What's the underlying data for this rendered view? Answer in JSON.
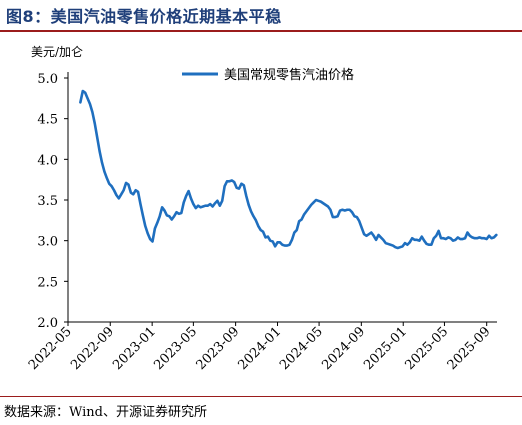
{
  "figure": {
    "title": "图8：美国汽油零售价格近期基本平稳",
    "source": "数据来源：Wind、开源证券研究所"
  },
  "colors": {
    "series": "#1f6fbf",
    "axis": "#000000",
    "title": "#1f3f7a",
    "rule": "#9b1c1c"
  },
  "chart_data": {
    "type": "line",
    "ylabel": "美元/加仑",
    "xlabel": "",
    "ylim": [
      2.0,
      5.0
    ],
    "y_ticks": [
      "5.0",
      "4.5",
      "4.0",
      "3.5",
      "3.0",
      "2.5",
      "2.0"
    ],
    "x_ticks": [
      "2022-05",
      "2022-09",
      "2023-01",
      "2023-05",
      "2023-09",
      "2024-01",
      "2024-05",
      "2024-09",
      "2025-01",
      "2025-05",
      "2025-09"
    ],
    "grid": false,
    "legend_position": "top-right",
    "series": [
      {
        "name": "美国常规零售汽油价格",
        "x": [
          "2022-06-06",
          "2022-06-13",
          "2022-06-20",
          "2022-06-27",
          "2022-07-04",
          "2022-07-11",
          "2022-07-18",
          "2022-07-25",
          "2022-08-01",
          "2022-08-08",
          "2022-08-15",
          "2022-08-22",
          "2022-08-29",
          "2022-09-05",
          "2022-09-12",
          "2022-09-19",
          "2022-09-26",
          "2022-10-03",
          "2022-10-10",
          "2022-10-17",
          "2022-10-24",
          "2022-10-31",
          "2022-11-07",
          "2022-11-14",
          "2022-11-21",
          "2022-11-28",
          "2022-12-05",
          "2022-12-12",
          "2022-12-19",
          "2022-12-26",
          "2023-01-02",
          "2023-01-09",
          "2023-01-16",
          "2023-01-23",
          "2023-01-30",
          "2023-02-06",
          "2023-02-13",
          "2023-02-20",
          "2023-02-27",
          "2023-03-06",
          "2023-03-13",
          "2023-03-20",
          "2023-03-27",
          "2023-04-03",
          "2023-04-10",
          "2023-04-17",
          "2023-04-24",
          "2023-05-01",
          "2023-05-08",
          "2023-05-15",
          "2023-05-22",
          "2023-05-29",
          "2023-06-05",
          "2023-06-12",
          "2023-06-19",
          "2023-06-26",
          "2023-07-03",
          "2023-07-10",
          "2023-07-17",
          "2023-07-24",
          "2023-07-31",
          "2023-08-07",
          "2023-08-14",
          "2023-08-21",
          "2023-08-28",
          "2023-09-04",
          "2023-09-11",
          "2023-09-18",
          "2023-09-25",
          "2023-10-02",
          "2023-10-09",
          "2023-10-16",
          "2023-10-23",
          "2023-10-30",
          "2023-11-06",
          "2023-11-13",
          "2023-11-20",
          "2023-11-27",
          "2023-12-04",
          "2023-12-11",
          "2023-12-18",
          "2023-12-25",
          "2024-01-01",
          "2024-01-08",
          "2024-01-15",
          "2024-01-22",
          "2024-01-29",
          "2024-02-05",
          "2024-02-12",
          "2024-02-19",
          "2024-02-26",
          "2024-03-04",
          "2024-03-11",
          "2024-03-18",
          "2024-03-25",
          "2024-04-01",
          "2024-04-08",
          "2024-04-15",
          "2024-04-22",
          "2024-04-29",
          "2024-05-06",
          "2024-05-13",
          "2024-05-20",
          "2024-05-27",
          "2024-06-03",
          "2024-06-10",
          "2024-06-17",
          "2024-06-24",
          "2024-07-01",
          "2024-07-08",
          "2024-07-15",
          "2024-07-22",
          "2024-07-29",
          "2024-08-05",
          "2024-08-12",
          "2024-08-19",
          "2024-08-26",
          "2024-09-02",
          "2024-09-09",
          "2024-09-16",
          "2024-09-23",
          "2024-09-30",
          "2024-10-07",
          "2024-10-14",
          "2024-10-21",
          "2024-10-28",
          "2024-11-04",
          "2024-11-11",
          "2024-11-18",
          "2024-11-25",
          "2024-12-02",
          "2024-12-09",
          "2024-12-16",
          "2024-12-23",
          "2024-12-30",
          "2025-01-06",
          "2025-01-13",
          "2025-01-20",
          "2025-01-27",
          "2025-02-03",
          "2025-02-10",
          "2025-02-17",
          "2025-02-24",
          "2025-03-03",
          "2025-03-10",
          "2025-03-17",
          "2025-03-24",
          "2025-03-31",
          "2025-04-07",
          "2025-04-14",
          "2025-04-21",
          "2025-04-28",
          "2025-05-05",
          "2025-05-12",
          "2025-05-19",
          "2025-05-26",
          "2025-06-02",
          "2025-06-09",
          "2025-06-16",
          "2025-06-23",
          "2025-06-30",
          "2025-07-07",
          "2025-07-14",
          "2025-07-21",
          "2025-07-28",
          "2025-08-04",
          "2025-08-11",
          "2025-08-18",
          "2025-08-25",
          "2025-09-01",
          "2025-09-08",
          "2025-09-15",
          "2025-09-22",
          "2025-09-29"
        ],
        "values": [
          4.7,
          4.84,
          4.82,
          4.75,
          4.68,
          4.58,
          4.44,
          4.27,
          4.1,
          3.96,
          3.85,
          3.77,
          3.7,
          3.67,
          3.62,
          3.56,
          3.52,
          3.57,
          3.62,
          3.71,
          3.69,
          3.59,
          3.57,
          3.62,
          3.6,
          3.45,
          3.31,
          3.18,
          3.09,
          3.02,
          2.99,
          3.15,
          3.22,
          3.3,
          3.41,
          3.37,
          3.31,
          3.3,
          3.26,
          3.3,
          3.35,
          3.33,
          3.34,
          3.47,
          3.55,
          3.61,
          3.52,
          3.45,
          3.4,
          3.43,
          3.41,
          3.42,
          3.43,
          3.43,
          3.45,
          3.42,
          3.46,
          3.49,
          3.43,
          3.49,
          3.67,
          3.73,
          3.73,
          3.74,
          3.72,
          3.65,
          3.64,
          3.7,
          3.68,
          3.55,
          3.44,
          3.36,
          3.3,
          3.25,
          3.18,
          3.13,
          3.11,
          3.04,
          3.05,
          3.0,
          2.99,
          2.93,
          2.98,
          2.98,
          2.95,
          2.94,
          2.94,
          2.95,
          3.01,
          3.1,
          3.13,
          3.24,
          3.26,
          3.32,
          3.36,
          3.4,
          3.44,
          3.47,
          3.5,
          3.49,
          3.48,
          3.46,
          3.44,
          3.42,
          3.38,
          3.29,
          3.29,
          3.3,
          3.37,
          3.38,
          3.37,
          3.38,
          3.38,
          3.35,
          3.3,
          3.29,
          3.24,
          3.16,
          3.08,
          3.06,
          3.08,
          3.1,
          3.06,
          3.01,
          3.07,
          3.04,
          3.01,
          2.97,
          2.96,
          2.95,
          2.94,
          2.92,
          2.91,
          2.92,
          2.93,
          2.97,
          2.95,
          2.98,
          3.03,
          3.01,
          3.01,
          3.0,
          3.05,
          3.0,
          2.96,
          2.95,
          2.95,
          3.03,
          3.06,
          3.12,
          3.03,
          3.03,
          3.02,
          3.04,
          3.03,
          3.0,
          3.01,
          3.04,
          3.02,
          3.02,
          3.03,
          3.1,
          3.06,
          3.04,
          3.03,
          3.03,
          3.04,
          3.03,
          3.03,
          3.02,
          3.06,
          3.03,
          3.04,
          3.07
        ]
      }
    ]
  }
}
